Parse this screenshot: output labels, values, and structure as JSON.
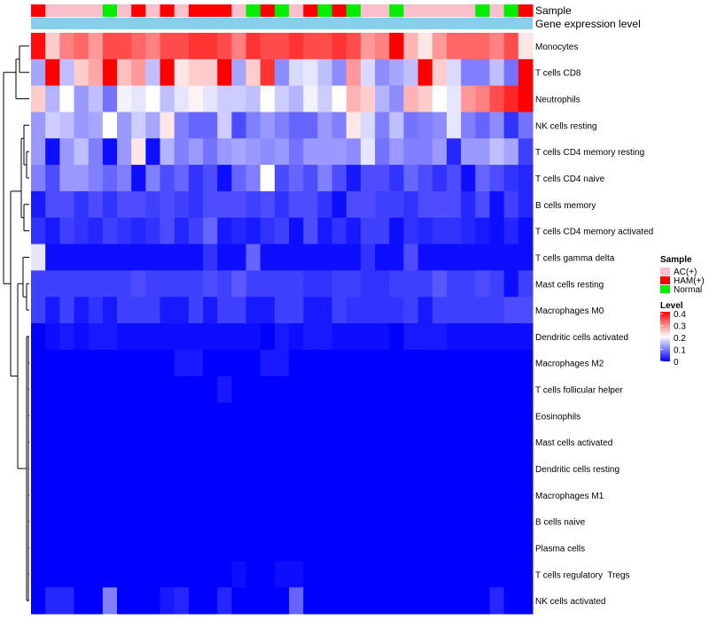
{
  "chart_data": {
    "type": "heatmap",
    "title": "",
    "annotations": {
      "sample_label": "Sample",
      "expr_label": "Gene expression level"
    },
    "legend": {
      "sample_title": "Sample",
      "sample_entries": [
        {
          "label": "AC(+)",
          "color": "#f9c0cc"
        },
        {
          "label": "HAM(+)",
          "color": "#ff0000"
        },
        {
          "label": "Normal",
          "color": "#00ee00"
        }
      ],
      "level_title": "Level",
      "level_ticks": [
        "0.4",
        "0.3",
        "0.2",
        "0.1",
        "0"
      ],
      "level_range": [
        0,
        0.4
      ]
    },
    "colors": {
      "low": "#0000ff",
      "mid": "#ffffff",
      "high": "#ff0000",
      "ac": "#f9c0cc",
      "ham": "#ff0000",
      "normal": "#00ee00",
      "expr_bar": "#87ceeb"
    },
    "samples": [
      "HAM(+)",
      "AC(+)",
      "AC(+)",
      "AC(+)",
      "AC(+)",
      "Normal",
      "AC(+)",
      "HAM(+)",
      "AC(+)",
      "HAM(+)",
      "AC(+)",
      "HAM(+)",
      "HAM(+)",
      "HAM(+)",
      "AC(+)",
      "Normal",
      "HAM(+)",
      "Normal",
      "AC(+)",
      "HAM(+)",
      "Normal",
      "HAM(+)",
      "Normal",
      "AC(+)",
      "AC(+)",
      "Normal",
      "AC(+)",
      "AC(+)",
      "AC(+)",
      "AC(+)",
      "AC(+)",
      "Normal",
      "AC(+)",
      "Normal",
      "HAM(+)"
    ],
    "rows": [
      {
        "name": "Monocytes",
        "values": [
          0.39,
          0.24,
          0.3,
          0.32,
          0.28,
          0.34,
          0.34,
          0.32,
          0.3,
          0.34,
          0.34,
          0.36,
          0.36,
          0.34,
          0.3,
          0.36,
          0.34,
          0.34,
          0.36,
          0.34,
          0.34,
          0.36,
          0.34,
          0.28,
          0.3,
          0.4,
          0.26,
          0.22,
          0.28,
          0.32,
          0.32,
          0.32,
          0.3,
          0.34,
          0.22
        ]
      },
      {
        "name": "T cells CD8",
        "values": [
          0.13,
          0.4,
          0.15,
          0.24,
          0.27,
          0.4,
          0.25,
          0.28,
          0.15,
          0.4,
          0.22,
          0.24,
          0.24,
          0.4,
          0.13,
          0.24,
          0.36,
          0.11,
          0.17,
          0.18,
          0.15,
          0.11,
          0.28,
          0.17,
          0.11,
          0.13,
          0.15,
          0.4,
          0.24,
          0.17,
          0.1,
          0.1,
          0.15,
          0.09,
          0.4
        ]
      },
      {
        "name": "Neutrophils",
        "values": [
          0.24,
          0.14,
          0.2,
          0.12,
          0.15,
          0.09,
          0.19,
          0.18,
          0.2,
          0.15,
          0.18,
          0.21,
          0.18,
          0.16,
          0.16,
          0.15,
          0.2,
          0.16,
          0.14,
          0.19,
          0.16,
          0.2,
          0.26,
          0.24,
          0.14,
          0.11,
          0.26,
          0.24,
          0.2,
          0.18,
          0.28,
          0.3,
          0.34,
          0.37,
          0.4
        ]
      },
      {
        "name": "NK cells resting",
        "values": [
          0.12,
          0.16,
          0.15,
          0.12,
          0.13,
          0.2,
          0.12,
          0.16,
          0.13,
          0.22,
          0.1,
          0.08,
          0.08,
          0.16,
          0.06,
          0.1,
          0.12,
          0.1,
          0.08,
          0.08,
          0.12,
          0.1,
          0.22,
          0.17,
          0.1,
          0.15,
          0.09,
          0.1,
          0.11,
          0.18,
          0.1,
          0.08,
          0.11,
          0.04,
          0.09
        ]
      },
      {
        "name": "T cells CD4 memory resting",
        "values": [
          0.12,
          0.01,
          0.12,
          0.15,
          0.1,
          0.01,
          0.12,
          0.22,
          0.01,
          0.14,
          0.1,
          0.12,
          0.09,
          0.12,
          0.13,
          0.12,
          0.11,
          0.12,
          0.09,
          0.12,
          0.12,
          0.12,
          0.11,
          0.18,
          0.09,
          0.12,
          0.1,
          0.1,
          0.12,
          0.03,
          0.12,
          0.12,
          0.15,
          0.13,
          0.05
        ]
      },
      {
        "name": "T cells CD4 naive",
        "values": [
          0.1,
          0.06,
          0.12,
          0.12,
          0.1,
          0.08,
          0.1,
          0.01,
          0.1,
          0.06,
          0.08,
          0.04,
          0.06,
          0.01,
          0.08,
          0.1,
          0.2,
          0.06,
          0.08,
          0.06,
          0.1,
          0.06,
          0.02,
          0.06,
          0.06,
          0.04,
          0.08,
          0.06,
          0.04,
          0.06,
          0.01,
          0.08,
          0.06,
          0.04,
          0.03
        ]
      },
      {
        "name": "B cells memory",
        "values": [
          0.02,
          0.06,
          0.06,
          0.04,
          0.06,
          0.04,
          0.06,
          0.06,
          0.05,
          0.06,
          0.05,
          0.04,
          0.06,
          0.06,
          0.06,
          0.05,
          0.06,
          0.04,
          0.06,
          0.06,
          0.04,
          0.01,
          0.06,
          0.06,
          0.05,
          0.05,
          0.04,
          0.06,
          0.06,
          0.06,
          0.03,
          0.06,
          0.01,
          0.05,
          0.03
        ]
      },
      {
        "name": "T cells CD4 memory activated",
        "values": [
          0.04,
          0.02,
          0.05,
          0.04,
          0.03,
          0.05,
          0.04,
          0.03,
          0.04,
          0.06,
          0.03,
          0.05,
          0.08,
          0.02,
          0.03,
          0.02,
          0.04,
          0.05,
          0.01,
          0.06,
          0.02,
          0.04,
          0.02,
          0.05,
          0.05,
          0.01,
          0.04,
          0.03,
          0.04,
          0.04,
          0.03,
          0.02,
          0.01,
          0.03,
          0.01
        ]
      },
      {
        "name": "T cells gamma delta",
        "values": [
          0.18,
          0.01,
          0.01,
          0.01,
          0.01,
          0.01,
          0.01,
          0.01,
          0.01,
          0.01,
          0.01,
          0.01,
          0.04,
          0.01,
          0.01,
          0.08,
          0.01,
          0.01,
          0.01,
          0.01,
          0.01,
          0.01,
          0.01,
          0.04,
          0.01,
          0.01,
          0.06,
          0.01,
          0.01,
          0.01,
          0.01,
          0.01,
          0.01,
          0.01,
          0.01
        ]
      },
      {
        "name": "Mast cells resting",
        "values": [
          0.05,
          0.05,
          0.05,
          0.05,
          0.05,
          0.05,
          0.05,
          0.06,
          0.05,
          0.05,
          0.05,
          0.05,
          0.06,
          0.05,
          0.07,
          0.05,
          0.05,
          0.05,
          0.05,
          0.04,
          0.04,
          0.05,
          0.05,
          0.04,
          0.04,
          0.05,
          0.05,
          0.05,
          0.07,
          0.05,
          0.05,
          0.06,
          0.05,
          0.01,
          0.05
        ]
      },
      {
        "name": "Macrophages M0",
        "values": [
          0.05,
          0.02,
          0.05,
          0.02,
          0.04,
          0.02,
          0.05,
          0.05,
          0.05,
          0.02,
          0.02,
          0.05,
          0.02,
          0.05,
          0.05,
          0.02,
          0.02,
          0.05,
          0.05,
          0.02,
          0.02,
          0.05,
          0.04,
          0.04,
          0.04,
          0.04,
          0.05,
          0.02,
          0.05,
          0.05,
          0.05,
          0.05,
          0.05,
          0.06,
          0.06
        ]
      },
      {
        "name": "Dendritic cells activated",
        "values": [
          0.0,
          0.01,
          0.02,
          0.01,
          0.02,
          0.02,
          0.01,
          0.01,
          0.01,
          0.01,
          0.01,
          0.01,
          0.01,
          0.01,
          0.01,
          0.01,
          0.0,
          0.02,
          0.01,
          0.02,
          0.02,
          0.01,
          0.01,
          0.01,
          0.01,
          0.0,
          0.02,
          0.02,
          0.02,
          0.01,
          0.01,
          0.01,
          0.01,
          0.01,
          0.01
        ]
      },
      {
        "name": "Macrophages M2",
        "values": [
          0.0,
          0.0,
          0.0,
          0.0,
          0.0,
          0.0,
          0.0,
          0.0,
          0.0,
          0.0,
          0.02,
          0.02,
          0.0,
          0.0,
          0.0,
          0.0,
          0.02,
          0.02,
          0.0,
          0.0,
          0.0,
          0.0,
          0.0,
          0.0,
          0.0,
          0.0,
          0.0,
          0.0,
          0.0,
          0.0,
          0.0,
          0.0,
          0.0,
          0.0,
          0.0
        ]
      },
      {
        "name": "T cells follicular helper",
        "values": [
          0.0,
          0.0,
          0.0,
          0.0,
          0.0,
          0.0,
          0.0,
          0.0,
          0.0,
          0.0,
          0.0,
          0.0,
          0.0,
          0.02,
          0.0,
          0.0,
          0.0,
          0.0,
          0.0,
          0.0,
          0.0,
          0.0,
          0.0,
          0.0,
          0.0,
          0.0,
          0.0,
          0.0,
          0.0,
          0.0,
          0.0,
          0.0,
          0.0,
          0.0,
          0.0
        ]
      },
      {
        "name": "Eosinophils",
        "values": [
          0.0,
          0.0,
          0.0,
          0.0,
          0.0,
          0.0,
          0.0,
          0.0,
          0.0,
          0.0,
          0.0,
          0.0,
          0.0,
          0.0,
          0.0,
          0.0,
          0.0,
          0.0,
          0.0,
          0.0,
          0.0,
          0.0,
          0.0,
          0.0,
          0.0,
          0.0,
          0.0,
          0.0,
          0.0,
          0.0,
          0.0,
          0.0,
          0.0,
          0.0,
          0.0
        ]
      },
      {
        "name": "Mast cells activated",
        "values": [
          0.0,
          0.0,
          0.0,
          0.0,
          0.0,
          0.0,
          0.0,
          0.0,
          0.0,
          0.0,
          0.0,
          0.0,
          0.0,
          0.0,
          0.0,
          0.0,
          0.0,
          0.0,
          0.0,
          0.0,
          0.0,
          0.0,
          0.0,
          0.0,
          0.0,
          0.0,
          0.0,
          0.0,
          0.0,
          0.0,
          0.0,
          0.0,
          0.0,
          0.0,
          0.0
        ]
      },
      {
        "name": "Dendritic cells resting",
        "values": [
          0.0,
          0.0,
          0.0,
          0.0,
          0.0,
          0.0,
          0.0,
          0.0,
          0.0,
          0.0,
          0.0,
          0.0,
          0.0,
          0.0,
          0.0,
          0.0,
          0.0,
          0.0,
          0.0,
          0.0,
          0.0,
          0.0,
          0.0,
          0.0,
          0.0,
          0.0,
          0.0,
          0.0,
          0.0,
          0.0,
          0.0,
          0.0,
          0.0,
          0.0,
          0.0
        ]
      },
      {
        "name": "Macrophages M1",
        "values": [
          0.0,
          0.0,
          0.0,
          0.0,
          0.0,
          0.0,
          0.0,
          0.0,
          0.0,
          0.0,
          0.0,
          0.0,
          0.0,
          0.0,
          0.0,
          0.0,
          0.0,
          0.0,
          0.0,
          0.0,
          0.0,
          0.0,
          0.0,
          0.0,
          0.0,
          0.0,
          0.0,
          0.0,
          0.0,
          0.0,
          0.0,
          0.0,
          0.0,
          0.0,
          0.0
        ]
      },
      {
        "name": "B cells naive",
        "values": [
          0.0,
          0.0,
          0.0,
          0.0,
          0.0,
          0.0,
          0.0,
          0.0,
          0.0,
          0.0,
          0.0,
          0.0,
          0.0,
          0.0,
          0.0,
          0.0,
          0.0,
          0.0,
          0.0,
          0.0,
          0.0,
          0.0,
          0.0,
          0.0,
          0.0,
          0.0,
          0.0,
          0.0,
          0.0,
          0.0,
          0.0,
          0.0,
          0.0,
          0.0,
          0.0
        ]
      },
      {
        "name": "Plasma cells",
        "values": [
          0.0,
          0.0,
          0.0,
          0.0,
          0.0,
          0.0,
          0.0,
          0.0,
          0.0,
          0.0,
          0.0,
          0.0,
          0.0,
          0.0,
          0.0,
          0.0,
          0.0,
          0.0,
          0.0,
          0.0,
          0.0,
          0.0,
          0.0,
          0.0,
          0.0,
          0.0,
          0.0,
          0.0,
          0.0,
          0.0,
          0.0,
          0.0,
          0.0,
          0.0,
          0.0
        ]
      },
      {
        "name": "T cells regulatory  Tregs",
        "values": [
          0.0,
          0.0,
          0.0,
          0.0,
          0.0,
          0.0,
          0.0,
          0.0,
          0.0,
          0.0,
          0.0,
          0.0,
          0.0,
          0.0,
          0.01,
          0.0,
          0.0,
          0.01,
          0.01,
          0.0,
          0.0,
          0.0,
          0.0,
          0.0,
          0.0,
          0.0,
          0.0,
          0.0,
          0.0,
          0.0,
          0.0,
          0.0,
          0.0,
          0.0,
          0.0
        ]
      },
      {
        "name": "NK cells activated",
        "values": [
          0.0,
          0.03,
          0.03,
          0.0,
          0.0,
          0.1,
          0.0,
          0.0,
          0.0,
          0.02,
          0.03,
          0.0,
          0.0,
          0.03,
          0.0,
          0.0,
          0.0,
          0.0,
          0.08,
          0.0,
          0.0,
          0.0,
          0.0,
          0.0,
          0.0,
          0.0,
          0.0,
          0.0,
          0.0,
          0.0,
          0.0,
          0.0,
          0.03,
          0.0,
          0.0
        ]
      }
    ]
  }
}
